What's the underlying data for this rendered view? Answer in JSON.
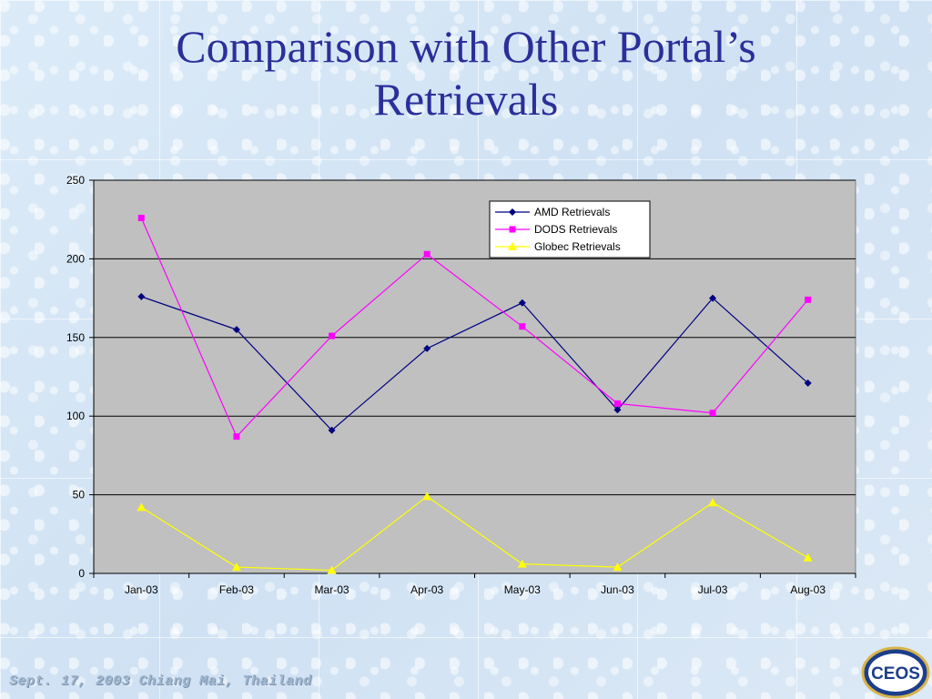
{
  "slide": {
    "title_line1": "Comparison with Other Portal’s",
    "title_line2": "Retrievals",
    "footer": "Sept. 17, 2003  Chiang Mai, Thailand",
    "logo_text": "CEOS"
  },
  "colors": {
    "title": "#2b2f9a",
    "plot_bg": "#c0c0c0",
    "amd": "#000080",
    "dods": "#ff00ff",
    "globec": "#ffff00"
  },
  "chart_data": {
    "type": "line",
    "title": "",
    "xlabel": "",
    "ylabel": "",
    "categories": [
      "Jan-03",
      "Feb-03",
      "Mar-03",
      "Apr-03",
      "May-03",
      "Jun-03",
      "Jul-03",
      "Aug-03"
    ],
    "ylim": [
      0,
      250
    ],
    "yticks": [
      0,
      50,
      100,
      150,
      200,
      250
    ],
    "grid": true,
    "legend": "top-right",
    "series": [
      {
        "name": "AMD Retrievals",
        "marker": "diamond",
        "values": [
          176,
          155,
          91,
          143,
          172,
          104,
          175,
          121
        ]
      },
      {
        "name": "DODS Retrievals",
        "marker": "square",
        "values": [
          226,
          87,
          151,
          203,
          157,
          108,
          102,
          174
        ]
      },
      {
        "name": "Globec Retrievals",
        "marker": "triangle",
        "values": [
          42,
          4,
          2,
          49,
          6,
          4,
          45,
          10
        ]
      }
    ]
  }
}
